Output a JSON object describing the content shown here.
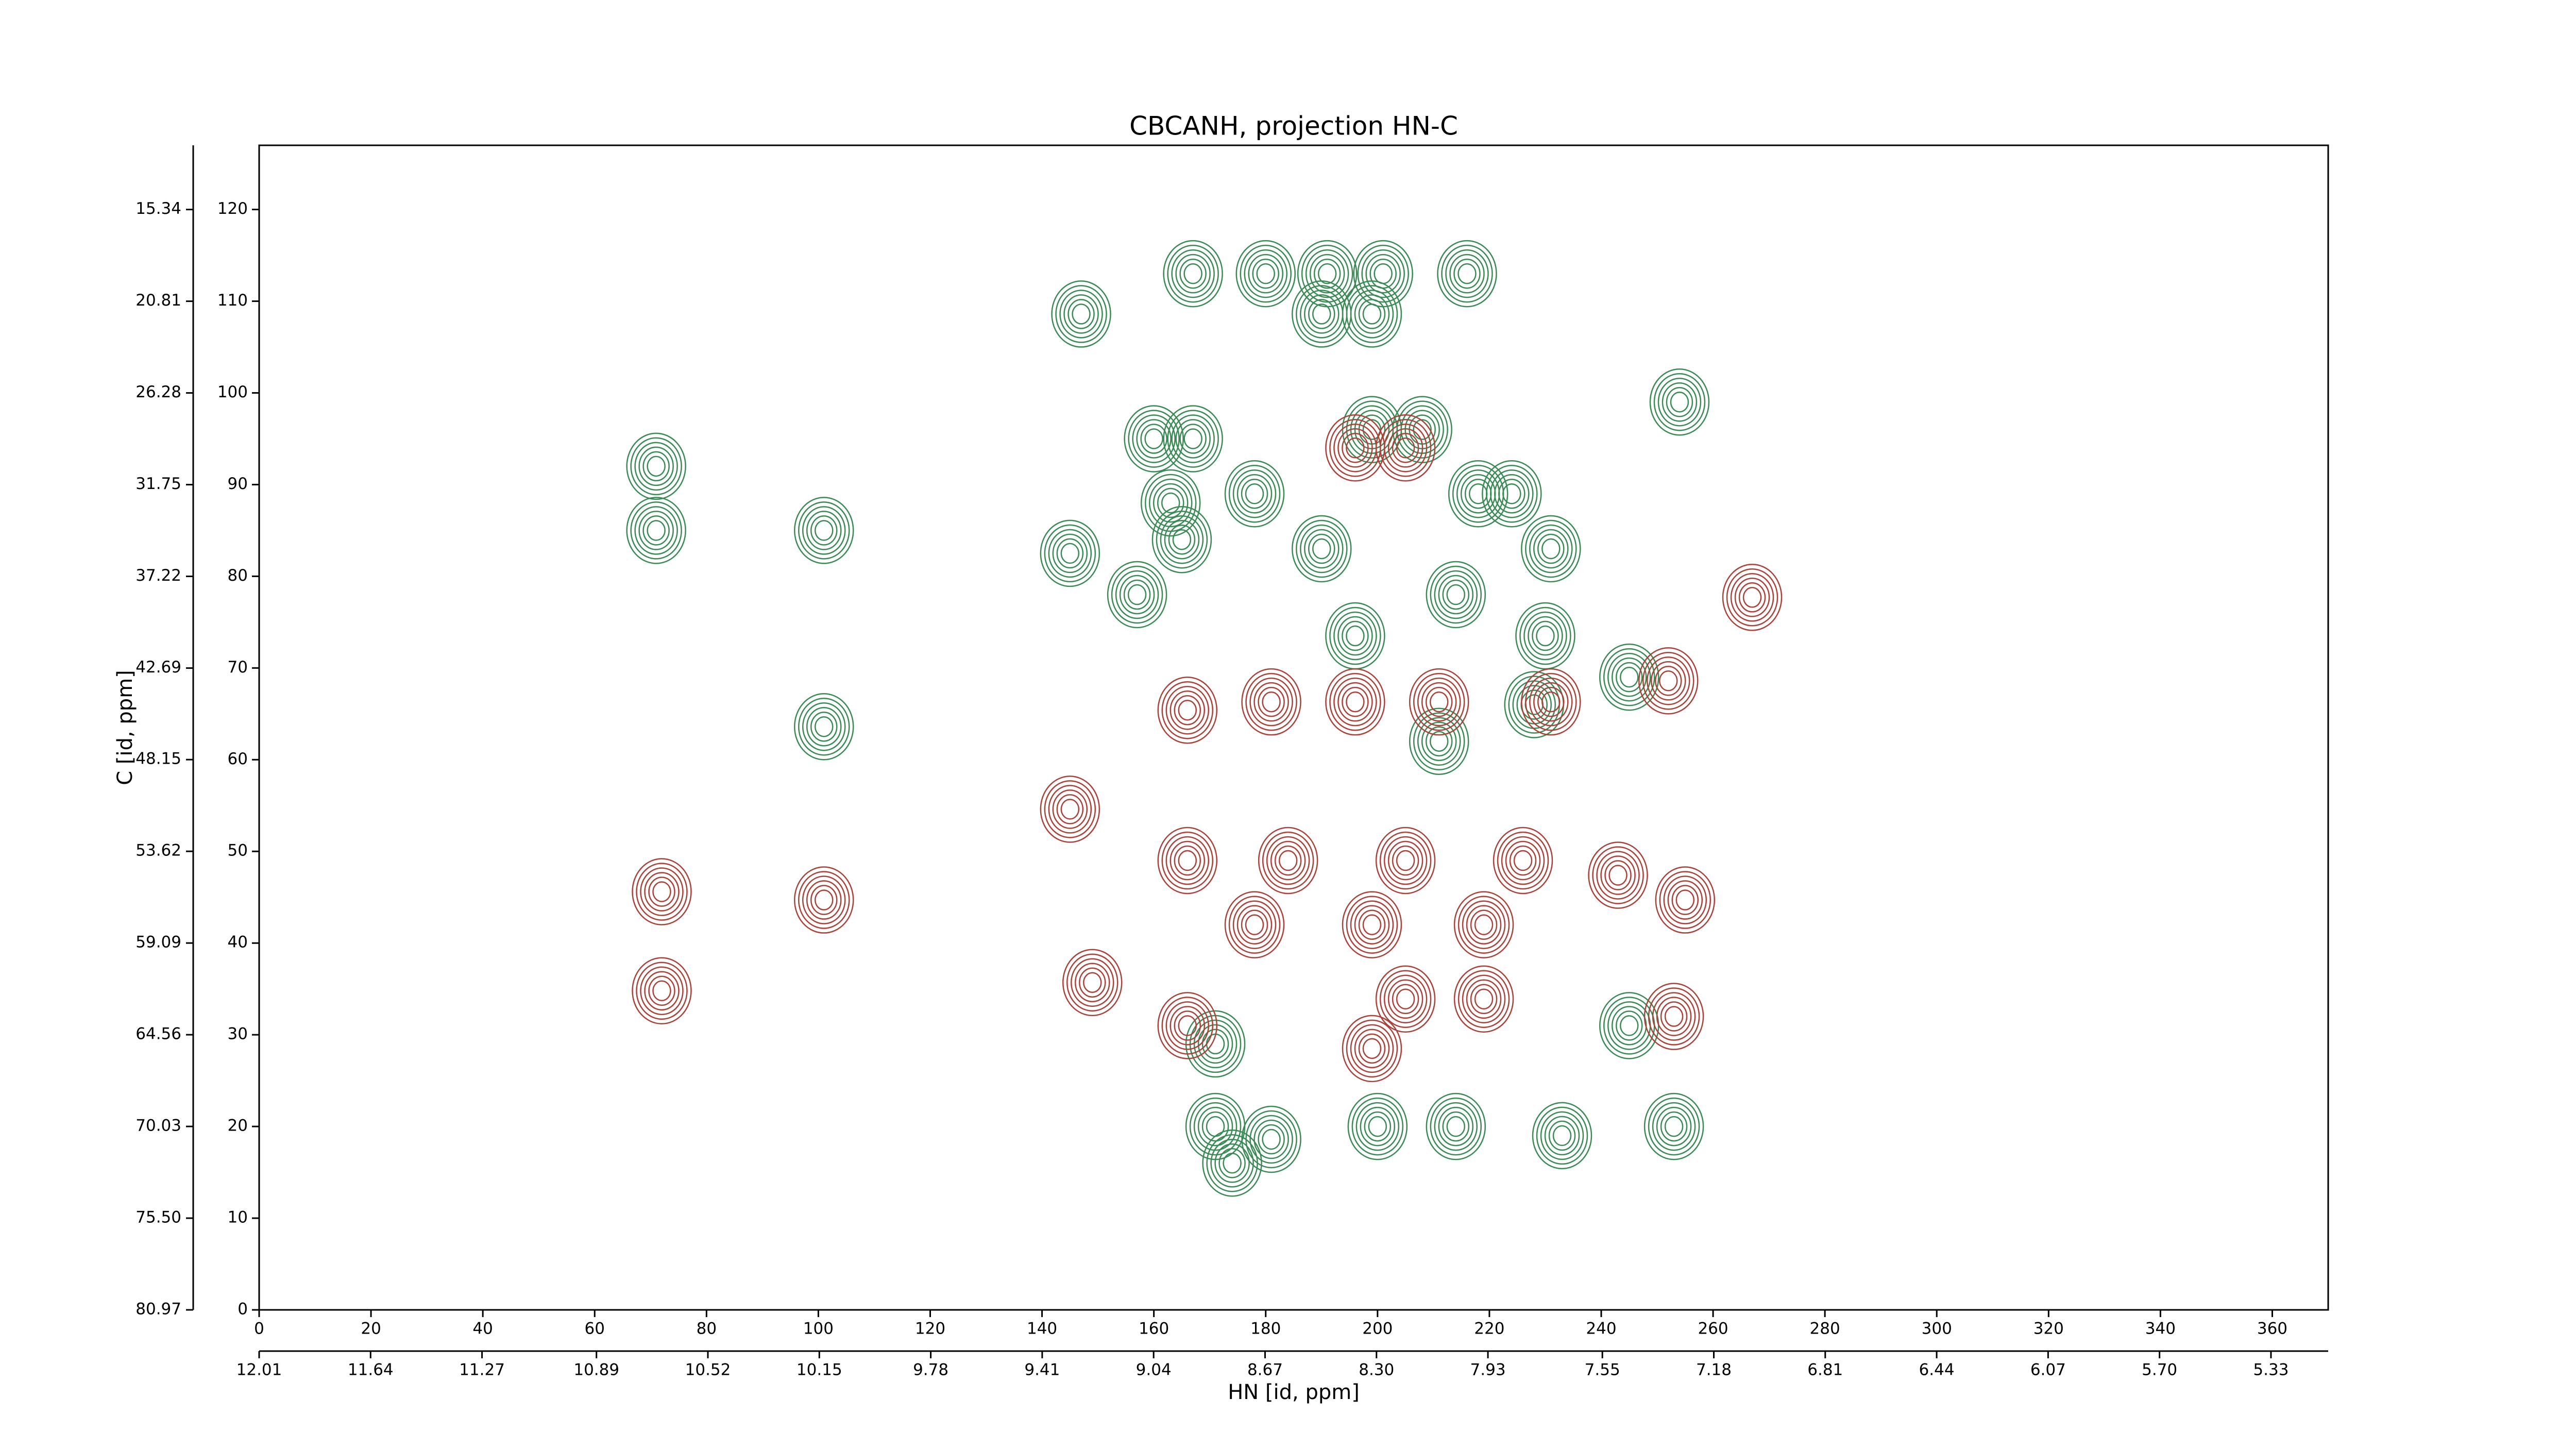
{
  "chart_data": {
    "type": "contour",
    "title": "CBCANH, projection HN-C",
    "xlabel": "HN [id, ppm]",
    "ylabel": "C [id, ppm]",
    "xlim": [
      0,
      370
    ],
    "xticks": [
      0,
      20,
      40,
      60,
      80,
      100,
      120,
      140,
      160,
      180,
      200,
      220,
      240,
      260,
      280,
      300,
      320,
      340,
      360
    ],
    "ylim": [
      0,
      127
    ],
    "yticks": [
      0,
      10,
      20,
      30,
      40,
      50,
      60,
      70,
      80,
      90,
      100,
      110,
      120
    ],
    "x2lim": [
      12.01,
      5.14
    ],
    "x2ticks": [
      12.01,
      11.64,
      11.27,
      10.89,
      10.52,
      10.15,
      9.78,
      9.41,
      9.04,
      8.67,
      {
        "value": 8.3,
        "label": "8.30"
      },
      7.93,
      7.55,
      7.18,
      6.81,
      6.44,
      6.07,
      {
        "value": 5.7,
        "label": "5.70"
      },
      5.33
    ],
    "y2lim": [
      80.97,
      11.51
    ],
    "y2ticks": [
      80.97,
      {
        "value": 75.5,
        "label": "75.50"
      },
      70.03,
      64.56,
      59.09,
      53.62,
      48.15,
      42.69,
      37.22,
      31.75,
      26.28,
      20.81,
      15.34
    ],
    "series": [
      {
        "color": "#3a8a55",
        "x": [
          71,
          71,
          101,
          101,
          147,
          167,
          180,
          191,
          201,
          216,
          190,
          199,
          160,
          167,
          254,
          163,
          165,
          145,
          157,
          178,
          190,
          199,
          208,
          218,
          224,
          231,
          214,
          230,
          196,
          245,
          228,
          211,
          245,
          171,
          171,
          181,
          200,
          214,
          233,
          253,
          174
        ],
        "y": [
          92,
          85,
          85,
          63.6,
          108.6,
          113,
          113,
          113,
          113,
          113,
          108.6,
          108.6,
          95,
          95,
          99,
          88,
          84,
          82.5,
          78,
          89,
          83,
          96,
          96,
          89,
          89,
          83,
          78,
          73.5,
          73.5,
          69,
          66,
          62,
          31,
          29,
          20,
          18.6,
          20,
          20,
          19,
          20,
          16
        ]
      },
      {
        "color": "#a8423a",
        "x": [
          72,
          72,
          101,
          145,
          166,
          181,
          196,
          211,
          252,
          231,
          149,
          166,
          184,
          205,
          226,
          243,
          255,
          178,
          199,
          219,
          205,
          219,
          199,
          166,
          253,
          267,
          196,
          205
        ],
        "y": [
          45.6,
          34.8,
          44.7,
          54.6,
          65.4,
          66.3,
          66.3,
          66.3,
          68.6,
          66.3,
          35.7,
          49,
          49,
          49,
          49,
          47.4,
          44.7,
          42,
          42,
          42,
          33.9,
          33.9,
          28.5,
          31,
          32,
          77.7,
          94,
          94
        ]
      }
    ]
  }
}
